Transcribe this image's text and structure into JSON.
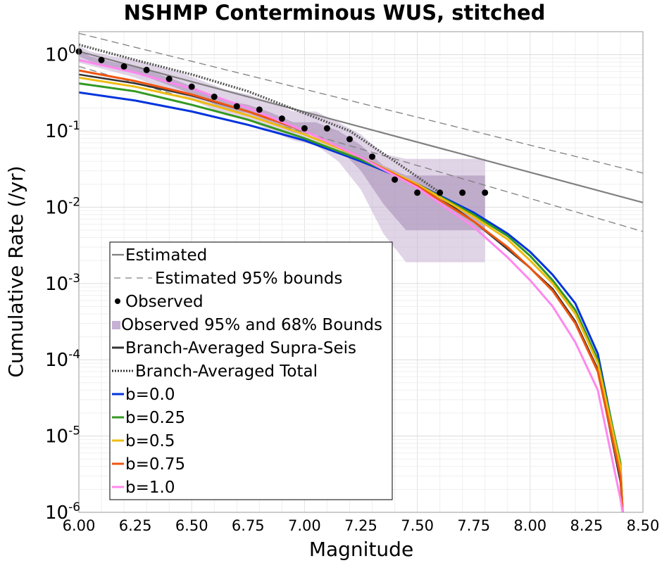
{
  "chart_data": {
    "type": "line",
    "title": "NSHMP Conterminous WUS, stitched",
    "xlabel": "Magnitude",
    "ylabel": "Cumulative Rate (/yr)",
    "xlim": [
      6.0,
      8.5
    ],
    "ylim": [
      1e-06,
      2
    ],
    "yscale": "log",
    "grid": true,
    "legend_position": "bottom-left",
    "x_ticks": [
      "6.00",
      "6.25",
      "6.50",
      "6.75",
      "7.00",
      "7.25",
      "7.50",
      "7.75",
      "8.00",
      "8.25",
      "8.50"
    ],
    "y_ticks": [
      {
        "base": "10",
        "exp": "0",
        "value": 1
      },
      {
        "base": "10",
        "exp": "-1",
        "value": 0.1
      },
      {
        "base": "10",
        "exp": "-2",
        "value": 0.01
      },
      {
        "base": "10",
        "exp": "-3",
        "value": 0.001
      },
      {
        "base": "10",
        "exp": "-4",
        "value": 0.0001
      },
      {
        "base": "10",
        "exp": "-5",
        "value": 1e-05
      },
      {
        "base": "10",
        "exp": "-6",
        "value": 1e-06
      }
    ],
    "colors": {
      "estimated": "#808080",
      "observed": "#000000",
      "bounds95": "#c6b0d4",
      "bounds68": "#a890b8",
      "supra": "#333333",
      "total": "#555555",
      "b0": "#0033dd",
      "b025": "#339922",
      "b05": "#eebb11",
      "b075": "#ee5511",
      "b1": "#ff88ee"
    },
    "legend": [
      {
        "label": "Estimated",
        "style": "solid",
        "color": "#808080"
      },
      {
        "label": "Estimated 95% bounds",
        "style": "dashed",
        "color": "#808080"
      },
      {
        "label": "Observed",
        "style": "dot",
        "color": "#000000"
      },
      {
        "label": "Observed 95% and 68% Bounds",
        "style": "box",
        "color": "#c6b0d4"
      },
      {
        "label": "Branch-Averaged Supra-Seis",
        "style": "solid-dark",
        "color": "#333333"
      },
      {
        "label": "Branch-Averaged Total",
        "style": "dotted",
        "color": "#333333"
      },
      {
        "label": "b=0.0",
        "style": "solid-thick",
        "color": "#0033dd"
      },
      {
        "label": "b=0.25",
        "style": "solid-thick",
        "color": "#339922"
      },
      {
        "label": "b=0.5",
        "style": "solid-thick",
        "color": "#eebb11"
      },
      {
        "label": "b=0.75",
        "style": "solid-thick",
        "color": "#ee5511"
      },
      {
        "label": "b=1.0",
        "style": "solid-thick",
        "color": "#ff88ee"
      }
    ],
    "estimated": {
      "x": [
        6.0,
        8.5
      ],
      "y": [
        1.1,
        0.0115
      ]
    },
    "estimated_upper": {
      "x": [
        6.0,
        8.5
      ],
      "y": [
        1.9,
        0.028
      ]
    },
    "estimated_lower": {
      "x": [
        6.0,
        8.5
      ],
      "y": [
        0.7,
        0.0048
      ]
    },
    "observed": {
      "x": [
        6.0,
        6.1,
        6.2,
        6.3,
        6.4,
        6.5,
        6.6,
        6.7,
        6.8,
        6.9,
        7.0,
        7.1,
        7.2,
        7.3,
        7.4,
        7.5,
        7.6,
        7.7,
        7.8
      ],
      "y": [
        1.1,
        0.85,
        0.7,
        0.63,
        0.48,
        0.38,
        0.28,
        0.21,
        0.19,
        0.145,
        0.108,
        0.108,
        0.078,
        0.046,
        0.023,
        0.0155,
        0.0155,
        0.0155,
        0.0155
      ]
    },
    "observed_bounds95": {
      "x": [
        6.0,
        6.05,
        6.15,
        6.25,
        6.35,
        6.45,
        6.55,
        6.65,
        6.75,
        6.85,
        6.95,
        7.05,
        7.15,
        7.25,
        7.35,
        7.45,
        7.55,
        7.65,
        7.75,
        7.8
      ],
      "lower": [
        0.78,
        0.72,
        0.6,
        0.5,
        0.38,
        0.3,
        0.22,
        0.16,
        0.14,
        0.1,
        0.075,
        0.065,
        0.04,
        0.017,
        0.0045,
        0.0019,
        0.0019,
        0.0019,
        0.0019,
        0.0019
      ],
      "upper": [
        1.3,
        1.1,
        0.95,
        0.85,
        0.7,
        0.58,
        0.45,
        0.35,
        0.3,
        0.24,
        0.18,
        0.18,
        0.13,
        0.09,
        0.05,
        0.043,
        0.043,
        0.043,
        0.043,
        0.043
      ]
    },
    "observed_bounds68": {
      "x": [
        6.0,
        6.05,
        6.15,
        6.25,
        6.35,
        6.45,
        6.55,
        6.65,
        6.75,
        6.85,
        6.95,
        7.05,
        7.15,
        7.25,
        7.35,
        7.45,
        7.55,
        7.65,
        7.75,
        7.8
      ],
      "lower": [
        0.95,
        0.82,
        0.68,
        0.58,
        0.45,
        0.35,
        0.26,
        0.19,
        0.17,
        0.13,
        0.095,
        0.09,
        0.06,
        0.03,
        0.011,
        0.005,
        0.005,
        0.005,
        0.005,
        0.005
      ],
      "upper": [
        1.15,
        0.95,
        0.8,
        0.7,
        0.56,
        0.44,
        0.33,
        0.25,
        0.22,
        0.175,
        0.13,
        0.13,
        0.1,
        0.065,
        0.035,
        0.026,
        0.026,
        0.026,
        0.026,
        0.026
      ]
    },
    "series": [
      {
        "key": "supra",
        "x": [
          6.0,
          6.25,
          6.5,
          6.75,
          7.0,
          7.25,
          7.5,
          7.6,
          7.75,
          8.0,
          8.1,
          8.2,
          8.3,
          8.4,
          8.41
        ],
        "y": [
          0.55,
          0.42,
          0.29,
          0.18,
          0.1,
          0.045,
          0.019,
          0.0135,
          0.0065,
          0.0016,
          0.00085,
          0.00032,
          7.5e-05,
          2.5e-06,
          1e-06
        ]
      },
      {
        "key": "total",
        "dotted": true,
        "x": [
          6.0,
          6.25,
          6.5,
          6.75,
          7.0,
          7.2,
          7.4,
          7.5,
          7.6
        ],
        "y": [
          1.35,
          0.85,
          0.55,
          0.33,
          0.17,
          0.1,
          0.04,
          0.025,
          0.0155
        ]
      },
      {
        "key": "b0",
        "x": [
          6.0,
          6.25,
          6.5,
          6.75,
          7.0,
          7.25,
          7.5,
          7.75,
          7.9,
          8.0,
          8.1,
          8.2,
          8.3,
          8.4,
          8.41
        ],
        "y": [
          0.32,
          0.25,
          0.18,
          0.12,
          0.075,
          0.04,
          0.02,
          0.0085,
          0.0045,
          0.0026,
          0.0013,
          0.00055,
          0.00012,
          4e-06,
          1e-06
        ]
      },
      {
        "key": "b025",
        "x": [
          6.0,
          6.25,
          6.5,
          6.75,
          7.0,
          7.25,
          7.5,
          7.75,
          7.9,
          8.0,
          8.1,
          8.2,
          8.3,
          8.4,
          8.41
        ],
        "y": [
          0.42,
          0.33,
          0.22,
          0.14,
          0.08,
          0.042,
          0.02,
          0.008,
          0.0042,
          0.0023,
          0.0011,
          0.00045,
          0.0001,
          4.5e-06,
          1e-06
        ]
      },
      {
        "key": "b05",
        "x": [
          6.0,
          6.25,
          6.5,
          6.75,
          7.0,
          7.25,
          7.5,
          7.75,
          7.9,
          8.0,
          8.1,
          8.2,
          8.3,
          8.4,
          8.41
        ],
        "y": [
          0.5,
          0.38,
          0.26,
          0.16,
          0.09,
          0.045,
          0.02,
          0.0075,
          0.0038,
          0.002,
          0.001,
          0.0004,
          9e-05,
          4e-06,
          1e-06
        ]
      },
      {
        "key": "b075",
        "x": [
          6.0,
          6.25,
          6.5,
          6.75,
          7.0,
          7.25,
          7.5,
          7.75,
          7.9,
          8.0,
          8.1,
          8.2,
          8.3,
          8.4,
          8.41
        ],
        "y": [
          0.62,
          0.45,
          0.3,
          0.18,
          0.1,
          0.045,
          0.019,
          0.0065,
          0.003,
          0.0016,
          0.0008,
          0.0003,
          7e-05,
          3e-06,
          1e-06
        ]
      },
      {
        "key": "b1",
        "x": [
          6.0,
          6.25,
          6.5,
          6.75,
          7.0,
          7.25,
          7.5,
          7.75,
          7.9,
          8.0,
          8.1,
          8.2,
          8.3,
          8.4,
          8.41
        ],
        "y": [
          0.85,
          0.58,
          0.36,
          0.2,
          0.1,
          0.045,
          0.018,
          0.0055,
          0.0022,
          0.0011,
          0.0005,
          0.00017,
          4e-05,
          1.5e-06,
          1e-06
        ]
      }
    ]
  }
}
